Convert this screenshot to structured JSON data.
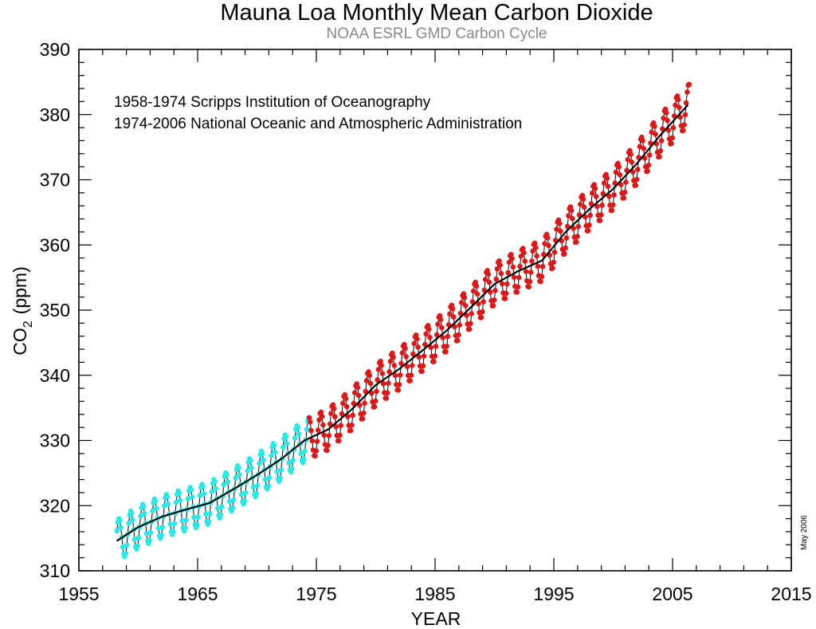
{
  "chart_data": {
    "type": "line",
    "title": "Mauna Loa Monthly Mean Carbon Dioxide",
    "subtitle": "NOAA ESRL GMD Carbon Cycle",
    "xlabel": "YEAR",
    "ylabel_main": "CO",
    "ylabel_subscript": "2",
    "ylabel_unit": "(ppm)",
    "xlim": [
      1955,
      2015
    ],
    "ylim": [
      310,
      390
    ],
    "x_ticks": [
      1955,
      1965,
      1975,
      1985,
      1995,
      2005,
      2015
    ],
    "x_tick_labels": [
      "1955",
      "1965",
      "1975",
      "1985",
      "1995",
      "2005",
      "2015"
    ],
    "y_ticks": [
      310,
      320,
      330,
      340,
      350,
      360,
      370,
      380,
      390
    ],
    "y_tick_labels": [
      "310",
      "320",
      "330",
      "340",
      "350",
      "360",
      "370",
      "380",
      "390"
    ],
    "annotations": [
      "1958-1974 Scripps Institution of Oceanography",
      "1974-2006 National Oceanic and Atmospheric Administration"
    ],
    "date_stamp": "May 2006",
    "seasonal_amplitude_ppm": 3.2,
    "series": [
      {
        "name": "1958-1974 Scripps Institution of Oceanography",
        "role": "monthly_mean",
        "color": "#2ee6e6",
        "x_start": 1958.2,
        "x_end": 1974.4,
        "y_start": 315.7,
        "y_end": 331.4
      },
      {
        "name": "1974-2006 National Oceanic and Atmospheric Administration",
        "role": "monthly_mean",
        "color": "#d91a1a",
        "x_start": 1974.4,
        "x_end": 2006.4,
        "y_start": 332.0,
        "y_end": 385.0
      },
      {
        "role": "trend",
        "color": "#000000",
        "x": [
          1958.2,
          1960,
          1962,
          1964,
          1966,
          1968,
          1970,
          1972,
          1974,
          1976,
          1978,
          1980,
          1982,
          1984,
          1986,
          1988,
          1990,
          1992,
          1994,
          1996,
          1998,
          2000,
          2002,
          2004,
          2006.3
        ],
        "y": [
          314.6,
          316.7,
          318.3,
          319.4,
          320.4,
          322.5,
          324.7,
          327.1,
          330.0,
          331.7,
          334.8,
          338.5,
          341.0,
          343.9,
          346.9,
          350.4,
          354.0,
          356.0,
          357.6,
          362.0,
          365.5,
          368.6,
          372.5,
          376.9,
          381.5
        ]
      }
    ]
  }
}
